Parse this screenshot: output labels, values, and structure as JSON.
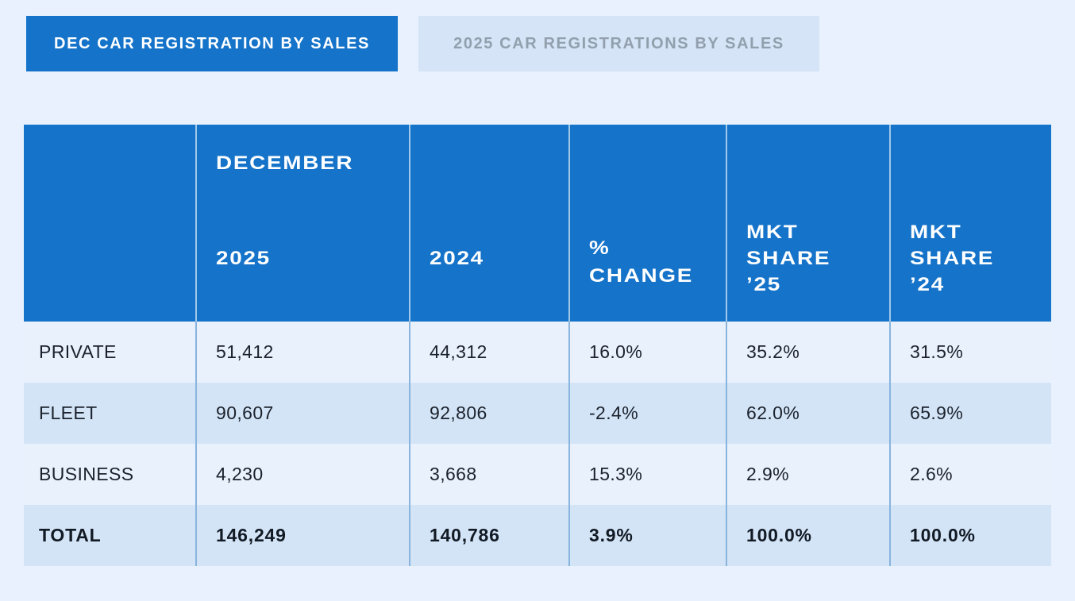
{
  "colors": {
    "page_background": "#e8f1fd",
    "accent_blue": "#1573c9",
    "inactive_tab_background": "#d5e4f6",
    "inactive_tab_text": "#92a0ae",
    "row_light": "#e9f1fc",
    "row_dark": "#d3e4f7",
    "body_separator": "#88b4de",
    "body_text": "#1b222c"
  },
  "tabs": [
    {
      "label": "DEC CAR REGISTRATION BY SALES",
      "active": true
    },
    {
      "label": "2025 CAR REGISTRATIONS BY SALES",
      "active": false
    }
  ],
  "table": {
    "header": {
      "col_month": "DECEMBER",
      "col_2025": "2025",
      "col_2024": "2024",
      "col_pct_change": "%\nCHANGE",
      "col_mkt_share_25": "MKT\nSHARE\n’25",
      "col_mkt_share_24": "MKT\nSHARE\n’24"
    },
    "rows": [
      {
        "label": "PRIVATE",
        "dec_2025": "51,412",
        "dec_2024": "44,312",
        "pct_change": "16.0%",
        "mkt_share_25": "35.2%",
        "mkt_share_24": "31.5%"
      },
      {
        "label": "FLEET",
        "dec_2025": "90,607",
        "dec_2024": "92,806",
        "pct_change": "-2.4%",
        "mkt_share_25": "62.0%",
        "mkt_share_24": "65.9%"
      },
      {
        "label": "BUSINESS",
        "dec_2025": "4,230",
        "dec_2024": "3,668",
        "pct_change": "15.3%",
        "mkt_share_25": "2.9%",
        "mkt_share_24": "2.6%"
      },
      {
        "label": "TOTAL",
        "dec_2025": "146,249",
        "dec_2024": "140,786",
        "pct_change": "3.9%",
        "mkt_share_25": "100.0%",
        "mkt_share_24": "100.0%"
      }
    ]
  }
}
